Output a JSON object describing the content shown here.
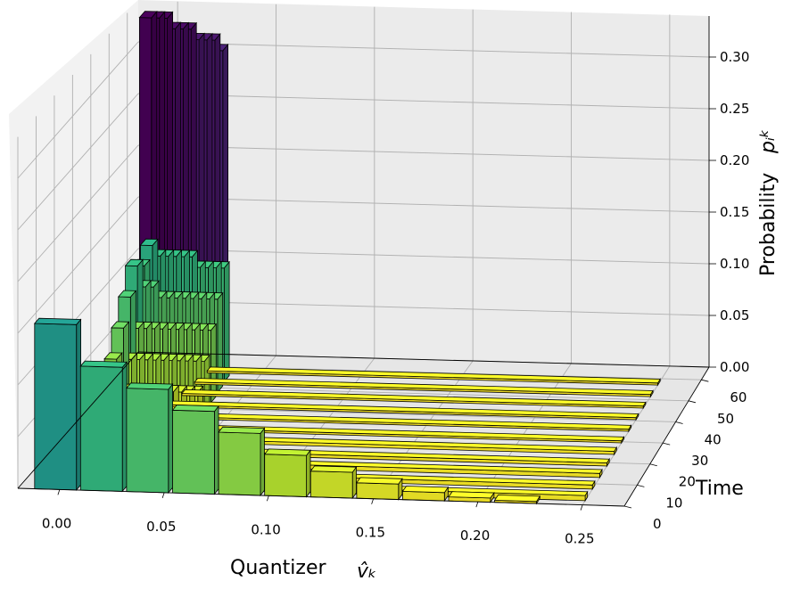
{
  "chart_data": {
    "type": "bar3d",
    "x_tick_labels": [
      "0.00",
      "0.05",
      "0.10",
      "0.15",
      "0.20",
      "0.25"
    ],
    "y_tick_labels": [
      "0",
      "10",
      "20",
      "30",
      "40",
      "50",
      "60"
    ],
    "z_tick_labels": [
      "0.00",
      "0.05",
      "0.10",
      "0.15",
      "0.20",
      "0.25",
      "0.30"
    ],
    "xlabel": "Quantizer  v̂_k",
    "ylabel": "Time",
    "zlabel": "Probability  p_i^k",
    "xlim": [
      -0.02,
      0.27
    ],
    "ylim": [
      0,
      66
    ],
    "zlim": [
      0,
      0.34
    ],
    "grid": true,
    "colormap": "viridis",
    "series": [
      {
        "time": 60,
        "values": [
          0.34,
          0.34,
          0.34,
          0.33,
          0.33,
          0.33,
          0.32,
          0.32,
          0.32,
          0.31
        ]
      },
      {
        "time": 55,
        "values": [
          0.11,
          0.13,
          0.12,
          0.12,
          0.12,
          0.12,
          0.12,
          0.11,
          0.11,
          0.11,
          0.11
        ]
      },
      {
        "time": 50,
        "values": [
          0.12,
          0.1,
          0.1,
          0.09,
          0.09,
          0.09,
          0.09,
          0.09,
          0.09,
          0.09,
          0.09
        ]
      },
      {
        "time": 45,
        "values": [
          0.1,
          0.07,
          0.07,
          0.07,
          0.07,
          0.07,
          0.07,
          0.07,
          0.07,
          0.07,
          0.07
        ]
      },
      {
        "time": 40,
        "values": [
          0.08,
          0.05,
          0.05,
          0.05,
          0.05,
          0.05,
          0.05,
          0.05,
          0.05,
          0.05,
          0.05
        ]
      },
      {
        "time": 35,
        "values": [
          0.06,
          0.03,
          0.03,
          0.03,
          0.03,
          0.03,
          0.03,
          0.03,
          0.03,
          0.03,
          0.03
        ]
      },
      {
        "time": 30,
        "values": [
          0.04,
          0.02,
          0.02,
          0.02,
          0.02,
          0.02,
          0.02,
          0.02,
          0.02,
          0.02,
          0.02
        ]
      },
      {
        "time": 25,
        "values": [
          0.02,
          0.015,
          0.015,
          0.015,
          0.015,
          0.015,
          0.015,
          0.015,
          0.015,
          0.015,
          0.015
        ]
      },
      {
        "time": 20,
        "values": [
          0.01,
          0.01,
          0.01,
          0.01,
          0.01,
          0.01,
          0.01,
          0.01,
          0.01,
          0.01,
          0.01
        ]
      }
    ],
    "front_row_values": [
      0.16,
      0.12,
      0.1,
      0.08,
      0.06,
      0.04,
      0.025,
      0.015,
      0.008,
      0.004,
      0.002
    ]
  }
}
